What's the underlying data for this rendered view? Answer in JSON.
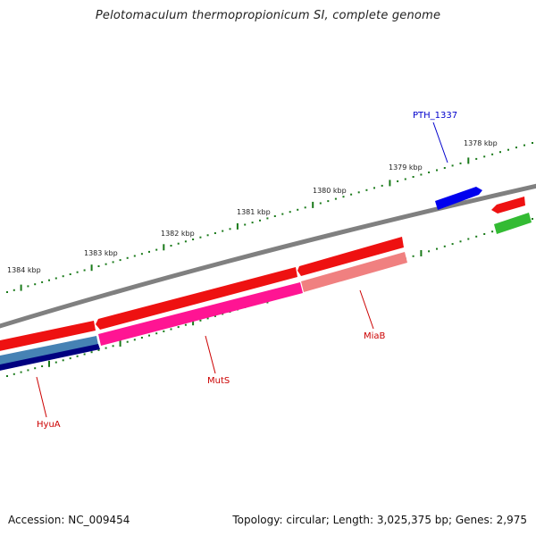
{
  "title": "Pelotomaculum thermopropionicum SI, complete genome",
  "footer": {
    "accession": "Accession: NC_009454",
    "summary": "Topology: circular; Length: 3,025,375 bp; Genes: 2,975"
  },
  "ruler_labels": [
    "1378 kbp",
    "1379 kbp",
    "1380 kbp",
    "1381 kbp",
    "1382 kbp",
    "1383 kbp",
    "1384 kbp"
  ],
  "gene_labels": [
    {
      "name": "PTH_1337",
      "color": "#0000cc"
    },
    {
      "name": "MiaB",
      "color": "#cc0000"
    },
    {
      "name": "MutS",
      "color": "#cc0000"
    },
    {
      "name": "HyuA",
      "color": "#cc0000"
    }
  ],
  "colors": {
    "backbone": "#808080",
    "ruler": "#1a7a1a",
    "red": "#ee1111",
    "pink": "#ff1493",
    "lightred": "#f08080",
    "blue": "#0000ee",
    "steelblue": "#4682b4",
    "navy": "#000080",
    "green": "#33bb33"
  }
}
